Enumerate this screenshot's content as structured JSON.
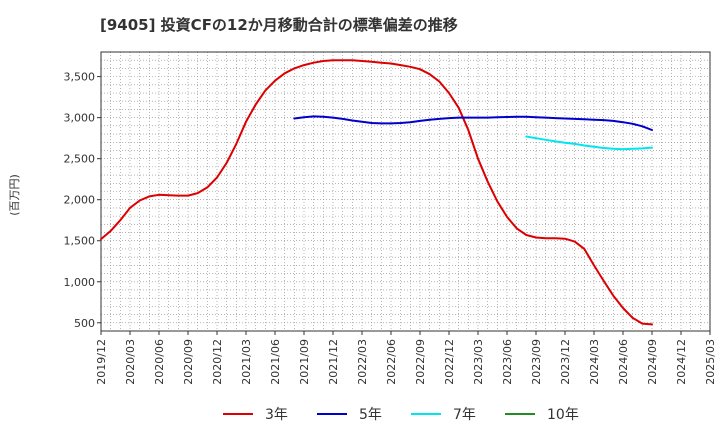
{
  "chart_data": {
    "type": "line",
    "title": "[9405]  投資CFの12か月移動合計の標準偏差の推移",
    "ylabel": "(百万円)",
    "xlabel": "",
    "ylim": [
      400,
      3800
    ],
    "yticks": [
      500,
      1000,
      1500,
      2000,
      2500,
      3000,
      3500
    ],
    "ytick_labels": [
      "500",
      "1,000",
      "1,500",
      "2,000",
      "2,500",
      "3,000",
      "3,500"
    ],
    "xlim": [
      "2019/12",
      "2025/03"
    ],
    "xticks": [
      "2019/12",
      "2020/03",
      "2020/06",
      "2020/09",
      "2020/12",
      "2021/03",
      "2021/06",
      "2021/09",
      "2021/12",
      "2022/03",
      "2022/06",
      "2022/09",
      "2022/12",
      "2023/03",
      "2023/06",
      "2023/09",
      "2023/12",
      "2024/03",
      "2024/06",
      "2024/09",
      "2024/12",
      "2025/03"
    ],
    "grid": true,
    "legend_position": "bottom",
    "series": [
      {
        "name": "3年",
        "color": "#dd0000",
        "x": [
          "2019/12",
          "2020/01",
          "2020/02",
          "2020/03",
          "2020/04",
          "2020/05",
          "2020/06",
          "2020/07",
          "2020/08",
          "2020/09",
          "2020/10",
          "2020/11",
          "2020/12",
          "2021/01",
          "2021/02",
          "2021/03",
          "2021/04",
          "2021/05",
          "2021/06",
          "2021/07",
          "2021/08",
          "2021/09",
          "2021/10",
          "2021/11",
          "2021/12",
          "2022/01",
          "2022/02",
          "2022/03",
          "2022/04",
          "2022/05",
          "2022/06",
          "2022/07",
          "2022/08",
          "2022/09",
          "2022/10",
          "2022/11",
          "2022/12",
          "2023/01",
          "2023/02",
          "2023/03",
          "2023/04",
          "2023/05",
          "2023/06",
          "2023/07",
          "2023/08",
          "2023/09",
          "2023/10",
          "2023/11",
          "2023/12",
          "2024/01",
          "2024/02",
          "2024/03",
          "2024/04",
          "2024/05",
          "2024/06",
          "2024/07",
          "2024/08",
          "2024/09"
        ],
        "values": [
          1520,
          1620,
          1750,
          1900,
          1990,
          2040,
          2060,
          2055,
          2050,
          2050,
          2080,
          2150,
          2270,
          2450,
          2680,
          2950,
          3160,
          3330,
          3450,
          3540,
          3600,
          3640,
          3670,
          3690,
          3700,
          3700,
          3700,
          3690,
          3680,
          3670,
          3660,
          3640,
          3620,
          3590,
          3530,
          3440,
          3300,
          3120,
          2850,
          2500,
          2220,
          1980,
          1790,
          1650,
          1570,
          1540,
          1530,
          1530,
          1525,
          1490,
          1400,
          1200,
          1010,
          830,
          680,
          560,
          490,
          480
        ]
      },
      {
        "name": "5年",
        "color": "#0000cc",
        "x": [
          "2021/08",
          "2021/09",
          "2021/10",
          "2021/11",
          "2021/12",
          "2022/01",
          "2022/02",
          "2022/03",
          "2022/04",
          "2022/05",
          "2022/06",
          "2022/07",
          "2022/08",
          "2022/09",
          "2022/10",
          "2022/11",
          "2022/12",
          "2023/01",
          "2023/02",
          "2023/03",
          "2023/04",
          "2023/05",
          "2023/06",
          "2023/07",
          "2023/08",
          "2023/09",
          "2023/10",
          "2023/11",
          "2023/12",
          "2024/01",
          "2024/02",
          "2024/03",
          "2024/04",
          "2024/05",
          "2024/06",
          "2024/07",
          "2024/08",
          "2024/09"
        ],
        "values": [
          2990,
          3005,
          3015,
          3010,
          3000,
          2985,
          2965,
          2950,
          2935,
          2930,
          2930,
          2935,
          2945,
          2960,
          2975,
          2985,
          2995,
          3000,
          3000,
          3000,
          3000,
          3005,
          3008,
          3010,
          3010,
          3005,
          3000,
          2995,
          2990,
          2985,
          2980,
          2975,
          2970,
          2960,
          2945,
          2925,
          2895,
          2850
        ]
      },
      {
        "name": "7年",
        "color": "#00e5ee",
        "x": [
          "2023/08",
          "2023/09",
          "2023/10",
          "2023/11",
          "2023/12",
          "2024/01",
          "2024/02",
          "2024/03",
          "2024/04",
          "2024/05",
          "2024/06",
          "2024/07",
          "2024/08",
          "2024/09"
        ],
        "values": [
          2770,
          2750,
          2730,
          2710,
          2695,
          2680,
          2660,
          2645,
          2630,
          2620,
          2615,
          2620,
          2625,
          2635
        ]
      },
      {
        "name": "10年",
        "color": "#228b22",
        "x": [],
        "values": []
      }
    ]
  }
}
